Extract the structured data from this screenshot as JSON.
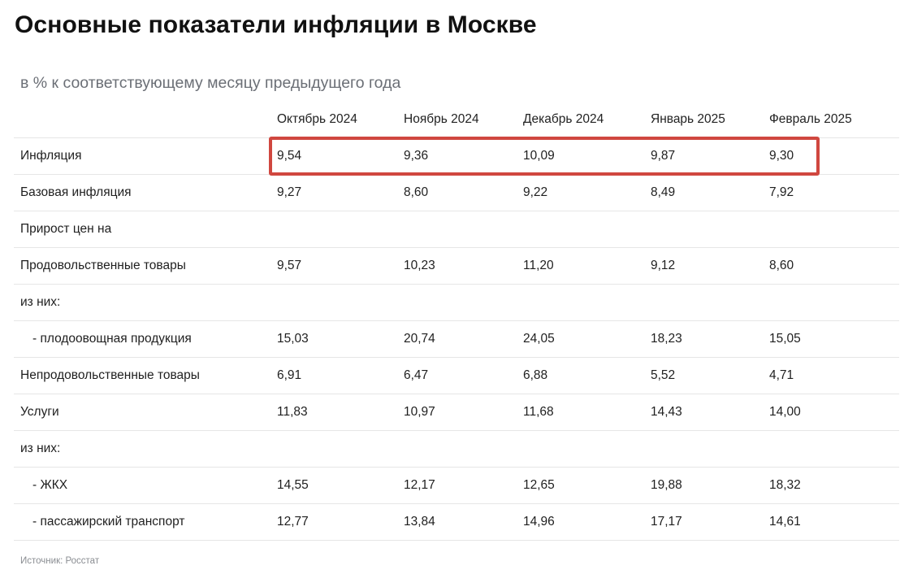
{
  "title": "Основные показатели инфляции в Москве",
  "subtitle": "в % к соответствующему месяцу предыдущего года",
  "table": {
    "columns": [
      "Октябрь 2024",
      "Ноябрь 2024",
      "Декабрь 2024",
      "Январь 2025",
      "Февраль 2025"
    ],
    "rows": [
      {
        "label": "Инфляция",
        "values": [
          "9,54",
          "9,36",
          "10,09",
          "9,87",
          "9,30"
        ]
      },
      {
        "label": "Базовая инфляция",
        "values": [
          "9,27",
          "8,60",
          "9,22",
          "8,49",
          "7,92"
        ]
      },
      {
        "label": "Прирост цен на",
        "values": [
          "",
          "",
          "",
          "",
          ""
        ]
      },
      {
        "label": "Продовольственные товары",
        "values": [
          "9,57",
          "10,23",
          "11,20",
          "9,12",
          "8,60"
        ]
      },
      {
        "label": "из них:",
        "values": [
          "",
          "",
          "",
          "",
          ""
        ]
      },
      {
        "label": "- плодоовощная продукция",
        "values": [
          "15,03",
          "20,74",
          "24,05",
          "18,23",
          "15,05"
        ]
      },
      {
        "label": "Непродовольственные товары",
        "values": [
          "6,91",
          "6,47",
          "6,88",
          "5,52",
          "4,71"
        ]
      },
      {
        "label": "Услуги",
        "values": [
          "11,83",
          "10,97",
          "11,68",
          "14,43",
          "14,00"
        ]
      },
      {
        "label": "из них:",
        "values": [
          "",
          "",
          "",
          "",
          ""
        ]
      },
      {
        "label": "- ЖКХ",
        "values": [
          "14,55",
          "12,17",
          "12,65",
          "19,88",
          "18,32"
        ]
      },
      {
        "label": "- пассажирский транспорт",
        "values": [
          "12,77",
          "13,84",
          "14,96",
          "17,17",
          "14,61"
        ]
      }
    ]
  },
  "highlight": {
    "row": "Инфляция",
    "color": "#d0473f"
  },
  "source": "Источник: Росстат"
}
